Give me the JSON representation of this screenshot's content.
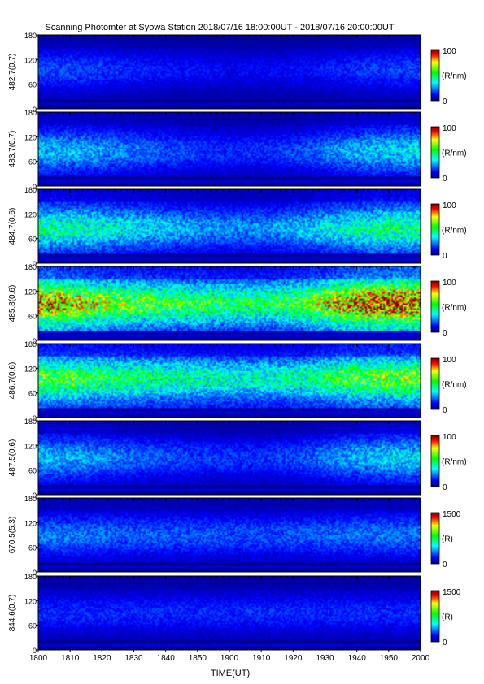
{
  "figure": {
    "title": "Scanning Photomter at Syowa Station 2018/07/16 18:00:00UT - 2018/07/16 20:00:00UT"
  },
  "chart_data": {
    "type": "heatmap",
    "xlabel": "TIME(UT)",
    "x_ticks": [
      "1800",
      "1810",
      "1820",
      "1830",
      "1840",
      "1850",
      "1900",
      "1910",
      "1920",
      "1930",
      "1940",
      "1950",
      "2000"
    ],
    "x_range": [
      "18:00",
      "20:00"
    ],
    "y_ticks": [
      "0",
      "60",
      "120",
      "180"
    ],
    "ylim": [
      0,
      180
    ],
    "colormap": [
      "#000080",
      "#0000ff",
      "#00ffff",
      "#00ff00",
      "#ffff00",
      "#ff0000",
      "#800000"
    ],
    "panels": [
      {
        "label": "482.7(0.7)",
        "colorbar": {
          "max_label": "100",
          "min_label": "0",
          "unit": "(R/nm)"
        },
        "intensity_level": 0.18,
        "profile_x": [
          0,
          0.1,
          0.2,
          0.3,
          0.4,
          0.5,
          0.6,
          0.7,
          0.8,
          0.9,
          1.0
        ],
        "profile": [
          0.8,
          0.8,
          0.7,
          0.6,
          0.55,
          0.5,
          0.5,
          0.55,
          0.65,
          0.75,
          0.8
        ],
        "band_center": 95
      },
      {
        "label": "483.7(0.7)",
        "colorbar": {
          "max_label": "100",
          "min_label": "0",
          "unit": "(R/nm)"
        },
        "intensity_level": 0.28,
        "profile_x": [
          0,
          0.1,
          0.2,
          0.3,
          0.4,
          0.5,
          0.6,
          0.7,
          0.8,
          0.9,
          1.0
        ],
        "profile": [
          0.85,
          0.8,
          0.7,
          0.6,
          0.5,
          0.45,
          0.45,
          0.55,
          0.75,
          0.9,
          0.95
        ],
        "band_center": 85
      },
      {
        "label": "484.7(0.6)",
        "colorbar": {
          "max_label": "100",
          "min_label": "0",
          "unit": "(R/nm)"
        },
        "intensity_level": 0.36,
        "profile_x": [
          0,
          0.1,
          0.2,
          0.3,
          0.4,
          0.5,
          0.6,
          0.7,
          0.8,
          0.9,
          1.0
        ],
        "profile": [
          0.95,
          0.9,
          0.8,
          0.7,
          0.6,
          0.55,
          0.55,
          0.65,
          0.85,
          1.0,
          1.0
        ],
        "band_center": 85
      },
      {
        "label": "485.8(0.6)",
        "colorbar": {
          "max_label": "100",
          "min_label": "0",
          "unit": "(R/nm)"
        },
        "intensity_level": 0.6,
        "profile_x": [
          0,
          0.1,
          0.2,
          0.3,
          0.4,
          0.5,
          0.6,
          0.7,
          0.8,
          0.9,
          1.0
        ],
        "profile": [
          1.1,
          0.95,
          0.8,
          0.75,
          0.7,
          0.65,
          0.65,
          0.75,
          1.05,
          1.2,
          1.2
        ],
        "band_center": 90
      },
      {
        "label": "486.7(0.6)",
        "colorbar": {
          "max_label": "100",
          "min_label": "0",
          "unit": "(R/nm)"
        },
        "intensity_level": 0.45,
        "profile_x": [
          0,
          0.1,
          0.2,
          0.3,
          0.4,
          0.5,
          0.6,
          0.7,
          0.8,
          0.9,
          1.0
        ],
        "profile": [
          1.0,
          0.95,
          0.85,
          0.8,
          0.75,
          0.7,
          0.7,
          0.75,
          0.95,
          1.05,
          1.05
        ],
        "band_center": 95
      },
      {
        "label": "487.5(0.6)",
        "colorbar": {
          "max_label": "100",
          "min_label": "0",
          "unit": "(R/nm)"
        },
        "intensity_level": 0.26,
        "profile_x": [
          0,
          0.1,
          0.2,
          0.3,
          0.4,
          0.5,
          0.6,
          0.7,
          0.8,
          0.9,
          1.0
        ],
        "profile": [
          0.9,
          0.85,
          0.7,
          0.6,
          0.55,
          0.5,
          0.5,
          0.6,
          0.8,
          0.95,
          1.0
        ],
        "band_center": 90
      },
      {
        "label": "670.5(5.3)",
        "colorbar": {
          "max_label": "1500",
          "min_label": "0",
          "unit": "(R)"
        },
        "intensity_level": 0.2,
        "profile_x": [
          0,
          0.1,
          0.2,
          0.3,
          0.4,
          0.5,
          0.6,
          0.7,
          0.8,
          0.9,
          1.0
        ],
        "profile": [
          0.9,
          0.9,
          0.85,
          0.8,
          0.8,
          0.75,
          0.75,
          0.8,
          0.85,
          0.9,
          0.9
        ],
        "band_center": 90
      },
      {
        "label": "844.6(0.7)",
        "colorbar": {
          "max_label": "1500",
          "min_label": "0",
          "unit": "(R)"
        },
        "intensity_level": 0.12,
        "profile_x": [
          0,
          0.1,
          0.2,
          0.3,
          0.4,
          0.5,
          0.6,
          0.7,
          0.8,
          0.9,
          1.0
        ],
        "profile": [
          1.0,
          1.0,
          1.0,
          1.0,
          1.0,
          1.0,
          1.0,
          1.0,
          1.0,
          1.0,
          1.0
        ],
        "band_center": 90
      }
    ]
  }
}
